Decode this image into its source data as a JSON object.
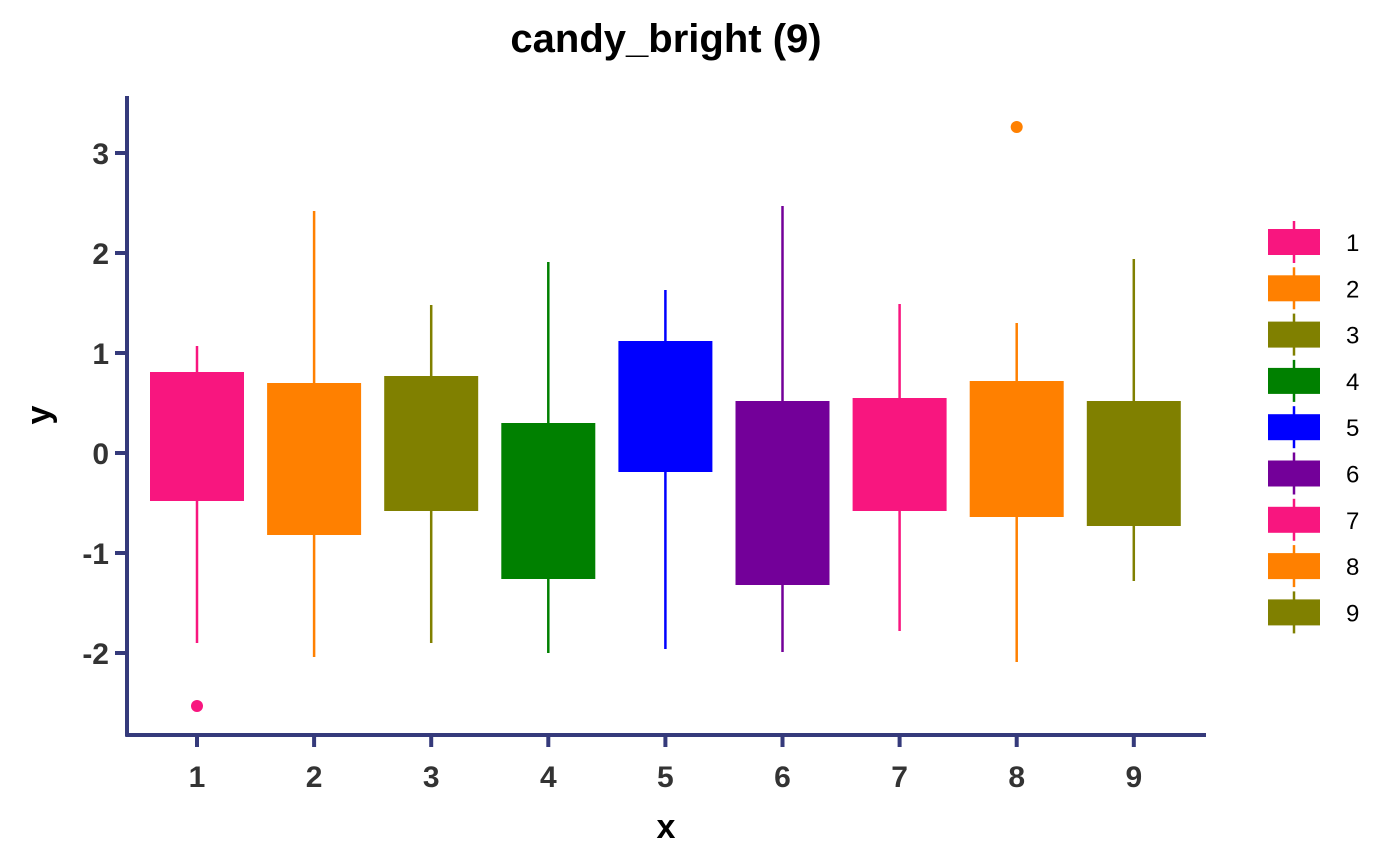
{
  "chart_data": {
    "type": "box",
    "title": "candy_bright (9)",
    "xlabel": "x",
    "ylabel": "y",
    "ylim": [
      -2.8,
      3.55
    ],
    "y_ticks": [
      3,
      2,
      1,
      0,
      -1,
      -2
    ],
    "y_tick_labels": [
      "3",
      "2",
      "1",
      "0",
      "-1",
      "-2"
    ],
    "categories": [
      "1",
      "2",
      "3",
      "4",
      "5",
      "6",
      "7",
      "8",
      "9"
    ],
    "axis_color": "#353a7b",
    "legend_position": "right",
    "boxes": [
      {
        "x": "1",
        "whisker_low": -1.9,
        "q1": -0.47,
        "q3": 0.8,
        "whisker_high": 1.07,
        "outliers": [
          -2.53
        ],
        "color": "#f8167f"
      },
      {
        "x": "2",
        "whisker_low": -2.04,
        "q1": -0.81,
        "q3": 0.69,
        "whisker_high": 2.42,
        "outliers": [],
        "color": "#ff8000"
      },
      {
        "x": "3",
        "whisker_low": -1.9,
        "q1": -0.57,
        "q3": 0.76,
        "whisker_high": 1.48,
        "outliers": [],
        "color": "#808000"
      },
      {
        "x": "4",
        "whisker_low": -2.0,
        "q1": -1.25,
        "q3": 0.29,
        "whisker_high": 1.91,
        "outliers": [],
        "color": "#008000"
      },
      {
        "x": "5",
        "whisker_low": -1.96,
        "q1": -0.18,
        "q3": 1.11,
        "whisker_high": 1.63,
        "outliers": [],
        "color": "#0000ff"
      },
      {
        "x": "6",
        "whisker_low": -1.99,
        "q1": -1.31,
        "q3": 0.51,
        "whisker_high": 2.47,
        "outliers": [],
        "color": "#730099"
      },
      {
        "x": "7",
        "whisker_low": -1.78,
        "q1": -0.57,
        "q3": 0.54,
        "whisker_high": 1.49,
        "outliers": [],
        "color": "#f8167f"
      },
      {
        "x": "8",
        "whisker_low": -2.09,
        "q1": -0.63,
        "q3": 0.71,
        "whisker_high": 1.3,
        "outliers": [
          3.26
        ],
        "color": "#ff8000"
      },
      {
        "x": "9",
        "whisker_low": -1.28,
        "q1": -0.72,
        "q3": 0.51,
        "whisker_high": 1.94,
        "outliers": [],
        "color": "#808000"
      }
    ],
    "legend": [
      {
        "label": "1",
        "color": "#f8167f"
      },
      {
        "label": "2",
        "color": "#ff8000"
      },
      {
        "label": "3",
        "color": "#808000"
      },
      {
        "label": "4",
        "color": "#008000"
      },
      {
        "label": "5",
        "color": "#0000ff"
      },
      {
        "label": "6",
        "color": "#730099"
      },
      {
        "label": "7",
        "color": "#f8167f"
      },
      {
        "label": "8",
        "color": "#ff8000"
      },
      {
        "label": "9",
        "color": "#808000"
      }
    ]
  }
}
